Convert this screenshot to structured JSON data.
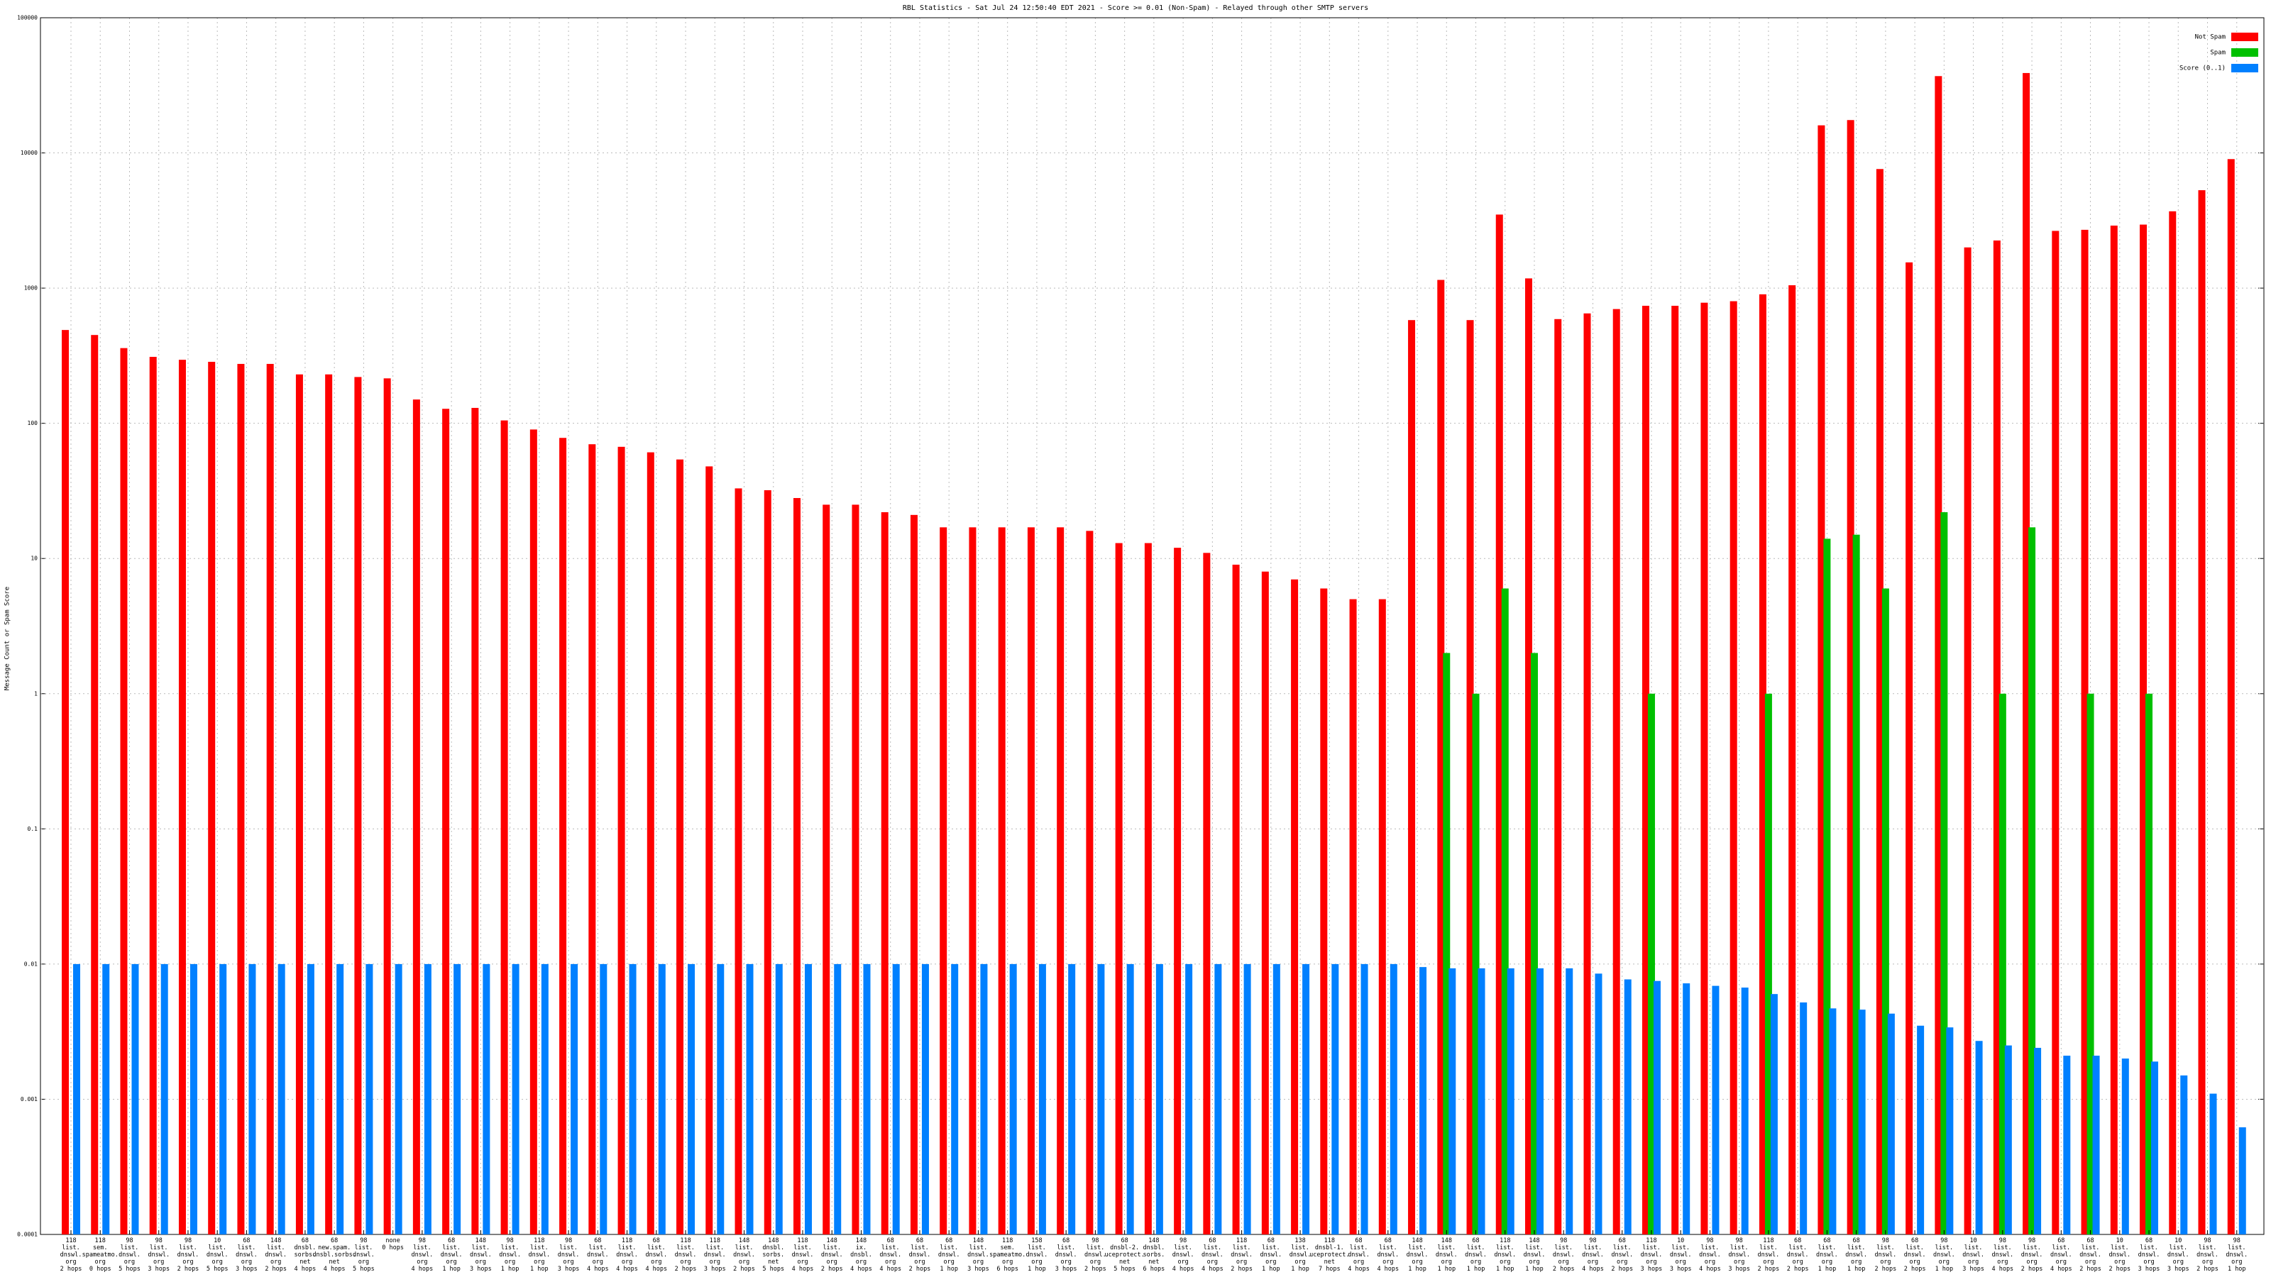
{
  "chart_data": {
    "type": "bar",
    "title": "RBL Statistics - Sat Jul 24 12:50:40 EDT 2021 - Score >= 0.01 (Non-Spam) - Relayed through other SMTP servers",
    "ylabel": "Message Count or Spam Score",
    "yscale": "log",
    "grid": true,
    "legend": "upper right",
    "ylim": [
      0.0001,
      100000
    ],
    "yticks": [
      0.0001,
      0.001,
      0.01,
      0.1,
      1,
      10,
      100,
      1000,
      10000,
      100000
    ],
    "categories": [
      [
        "118",
        "list.",
        "dnswl.",
        "org",
        "2 hops"
      ],
      [
        "118",
        "sem.",
        "spameatmo.",
        "org",
        "0 hops"
      ],
      [
        "98",
        "list.",
        "dnswl.",
        "org",
        "5 hops"
      ],
      [
        "98",
        "list.",
        "dnswl.",
        "org",
        "3 hops"
      ],
      [
        "98",
        "list.",
        "dnswl.",
        "org",
        "2 hops"
      ],
      [
        "10",
        "list.",
        "dnswl.",
        "org",
        "5 hops"
      ],
      [
        "68",
        "list.",
        "dnswl.",
        "org",
        "3 hops"
      ],
      [
        "148",
        "list.",
        "dnswl.",
        "org",
        "2 hops"
      ],
      [
        "68",
        "dnsbl.",
        "sorbs.",
        "net",
        "4 hops"
      ],
      [
        "68",
        "new.spam.",
        "dnsbl.sorbs.",
        "net",
        "4 hops"
      ],
      [
        "98",
        "list.",
        "dnswl.",
        "org",
        "5 hops"
      ],
      [
        "none",
        "0 hops"
      ],
      [
        "98",
        "list.",
        "dnswl.",
        "org",
        "4 hops"
      ],
      [
        "68",
        "list.",
        "dnswl.",
        "org",
        "1 hop"
      ],
      [
        "148",
        "list.",
        "dnswl.",
        "org",
        "3 hops"
      ],
      [
        "98",
        "list.",
        "dnswl.",
        "org",
        "1 hop"
      ],
      [
        "118",
        "list.",
        "dnswl.",
        "org",
        "1 hop"
      ],
      [
        "98",
        "list.",
        "dnswl.",
        "org",
        "3 hops"
      ],
      [
        "68",
        "list.",
        "dnswl.",
        "org",
        "4 hops"
      ],
      [
        "118",
        "list.",
        "dnswl.",
        "org",
        "4 hops"
      ],
      [
        "68",
        "list.",
        "dnswl.",
        "org",
        "4 hops"
      ],
      [
        "118",
        "list.",
        "dnswl.",
        "org",
        "2 hops"
      ],
      [
        "118",
        "list.",
        "dnswl.",
        "org",
        "3 hops"
      ],
      [
        "148",
        "list.",
        "dnswl.",
        "org",
        "2 hops"
      ],
      [
        "148",
        "dnsbl.",
        "sorbs.",
        "net",
        "5 hops"
      ],
      [
        "118",
        "list.",
        "dnswl.",
        "org",
        "4 hops"
      ],
      [
        "148",
        "list.",
        "dnswl.",
        "org",
        "2 hops"
      ],
      [
        "148",
        "ix.",
        "dnsbl.",
        "org",
        "4 hops"
      ],
      [
        "68",
        "list.",
        "dnswl.",
        "org",
        "4 hops"
      ],
      [
        "68",
        "list.",
        "dnswl.",
        "org",
        "2 hops"
      ],
      [
        "68",
        "list.",
        "dnswl.",
        "org",
        "1 hop"
      ],
      [
        "148",
        "list.",
        "dnswl.",
        "org",
        "3 hops"
      ],
      [
        "118",
        "sem.",
        "spameatmo.",
        "org",
        "6 hops"
      ],
      [
        "158",
        "list.",
        "dnswl.",
        "org",
        "1 hop"
      ],
      [
        "68",
        "list.",
        "dnswl.",
        "org",
        "3 hops"
      ],
      [
        "98",
        "list.",
        "dnswl.",
        "org",
        "2 hops"
      ],
      [
        "68",
        "dnsbl-2.",
        "uceprotect.",
        "net",
        "5 hops"
      ],
      [
        "148",
        "dnsbl.",
        "sorbs.",
        "net",
        "6 hops"
      ],
      [
        "98",
        "list.",
        "dnswl.",
        "org",
        "4 hops"
      ],
      [
        "68",
        "list.",
        "dnswl.",
        "org",
        "4 hops"
      ],
      [
        "118",
        "list.",
        "dnswl.",
        "org",
        "2 hops"
      ],
      [
        "68",
        "list.",
        "dnswl.",
        "org",
        "1 hop"
      ],
      [
        "138",
        "list.",
        "dnswl.",
        "org",
        "1 hop"
      ],
      [
        "118",
        "dnsbl-1.",
        "uceprotect.",
        "net",
        "7 hops"
      ],
      [
        "68",
        "list.",
        "dnswl.",
        "org",
        "4 hops"
      ],
      [
        "68",
        "list.",
        "dnswl.",
        "org",
        "4 hops"
      ],
      [
        "148",
        "list.",
        "dnswl.",
        "org",
        "1 hop"
      ],
      [
        "148",
        "list.",
        "dnswl.",
        "org",
        "1 hop"
      ],
      [
        "68",
        "list.",
        "dnswl.",
        "org",
        "1 hop"
      ],
      [
        "118",
        "list.",
        "dnswl.",
        "org",
        "1 hop"
      ],
      [
        "148",
        "list.",
        "dnswl.",
        "org",
        "1 hop"
      ],
      [
        "98",
        "list.",
        "dnswl.",
        "org",
        "2 hops"
      ],
      [
        "98",
        "list.",
        "dnswl.",
        "org",
        "4 hops"
      ],
      [
        "68",
        "list.",
        "dnswl.",
        "org",
        "2 hops"
      ],
      [
        "118",
        "list.",
        "dnswl.",
        "org",
        "3 hops"
      ],
      [
        "10",
        "list.",
        "dnswl.",
        "org",
        "3 hops"
      ],
      [
        "98",
        "list.",
        "dnswl.",
        "org",
        "4 hops"
      ],
      [
        "98",
        "list.",
        "dnswl.",
        "org",
        "3 hops"
      ],
      [
        "118",
        "list.",
        "dnswl.",
        "org",
        "2 hops"
      ],
      [
        "68",
        "list.",
        "dnswl.",
        "org",
        "2 hops"
      ],
      [
        "68",
        "list.",
        "dnswl.",
        "org",
        "1 hop"
      ],
      [
        "68",
        "list.",
        "dnswl.",
        "org",
        "1 hop"
      ],
      [
        "98",
        "list.",
        "dnswl.",
        "org",
        "2 hops"
      ],
      [
        "68",
        "list.",
        "dnswl.",
        "org",
        "2 hops"
      ],
      [
        "98",
        "list.",
        "dnswl.",
        "org",
        "1 hop"
      ],
      [
        "10",
        "list.",
        "dnswl.",
        "org",
        "3 hops"
      ],
      [
        "98",
        "list.",
        "dnswl.",
        "org",
        "4 hops"
      ],
      [
        "98",
        "list.",
        "dnswl.",
        "org",
        "2 hops"
      ],
      [
        "68",
        "list.",
        "dnswl.",
        "org",
        "4 hops"
      ],
      [
        "68",
        "list.",
        "dnswl.",
        "org",
        "2 hops"
      ],
      [
        "10",
        "list.",
        "dnswl.",
        "org",
        "2 hops"
      ],
      [
        "68",
        "list.",
        "dnswl.",
        "org",
        "3 hops"
      ],
      [
        "10",
        "list.",
        "dnswl.",
        "org",
        "3 hops"
      ],
      [
        "98",
        "list.",
        "dnswl.",
        "org",
        "2 hops"
      ],
      [
        "98",
        "list.",
        "dnswl.",
        "org",
        "1 hop"
      ]
    ],
    "series": [
      {
        "name": "Not Spam",
        "color": "#ff0000",
        "values": [
          490,
          450,
          360,
          310,
          295,
          285,
          275,
          275,
          230,
          230,
          220,
          215,
          150,
          128,
          130,
          105,
          90,
          78,
          70,
          67,
          61,
          54,
          48,
          33,
          32,
          28,
          25,
          25,
          22,
          21,
          17,
          17,
          17,
          17,
          17,
          16,
          13,
          13,
          12,
          11,
          9,
          8,
          7,
          6,
          5,
          5,
          580,
          1150,
          580,
          3500,
          1180,
          590,
          650,
          700,
          740,
          740,
          780,
          800,
          900,
          1050,
          16000,
          17500,
          7600,
          1550,
          37000,
          2000,
          2250,
          39000,
          2650,
          2700,
          2900,
          2950,
          3700,
          5300,
          9000
        ]
      },
      {
        "name": "Spam",
        "color": "#00c000",
        "values": [
          null,
          null,
          null,
          null,
          null,
          null,
          null,
          null,
          null,
          null,
          null,
          null,
          null,
          null,
          null,
          null,
          null,
          null,
          null,
          null,
          null,
          null,
          null,
          null,
          null,
          null,
          null,
          null,
          null,
          null,
          null,
          null,
          null,
          null,
          null,
          null,
          null,
          null,
          null,
          null,
          null,
          null,
          null,
          null,
          null,
          null,
          null,
          2,
          1,
          6,
          2,
          null,
          null,
          null,
          1,
          null,
          null,
          null,
          1,
          null,
          14,
          15,
          6,
          null,
          22,
          null,
          1,
          17,
          null,
          1,
          null,
          1,
          null,
          null,
          null
        ]
      },
      {
        "name": "Score (0..1)",
        "color": "#0080ff",
        "values": [
          0.01,
          0.01,
          0.01,
          0.01,
          0.01,
          0.01,
          0.01,
          0.01,
          0.01,
          0.01,
          0.01,
          0.01,
          0.01,
          0.01,
          0.01,
          0.01,
          0.01,
          0.01,
          0.01,
          0.01,
          0.01,
          0.01,
          0.01,
          0.01,
          0.01,
          0.01,
          0.01,
          0.01,
          0.01,
          0.01,
          0.01,
          0.01,
          0.01,
          0.01,
          0.01,
          0.01,
          0.01,
          0.01,
          0.01,
          0.01,
          0.01,
          0.01,
          0.01,
          0.01,
          0.01,
          0.01,
          0.0095,
          0.0093,
          0.0093,
          0.0093,
          0.0093,
          0.0093,
          0.0085,
          0.0077,
          0.0075,
          0.0072,
          0.0069,
          0.0067,
          0.006,
          0.0052,
          0.0047,
          0.0046,
          0.0043,
          0.0035,
          0.0034,
          0.0027,
          0.0025,
          0.0024,
          0.0021,
          0.0021,
          0.002,
          0.0019,
          0.0015,
          0.0011,
          0.00062
        ]
      }
    ]
  }
}
